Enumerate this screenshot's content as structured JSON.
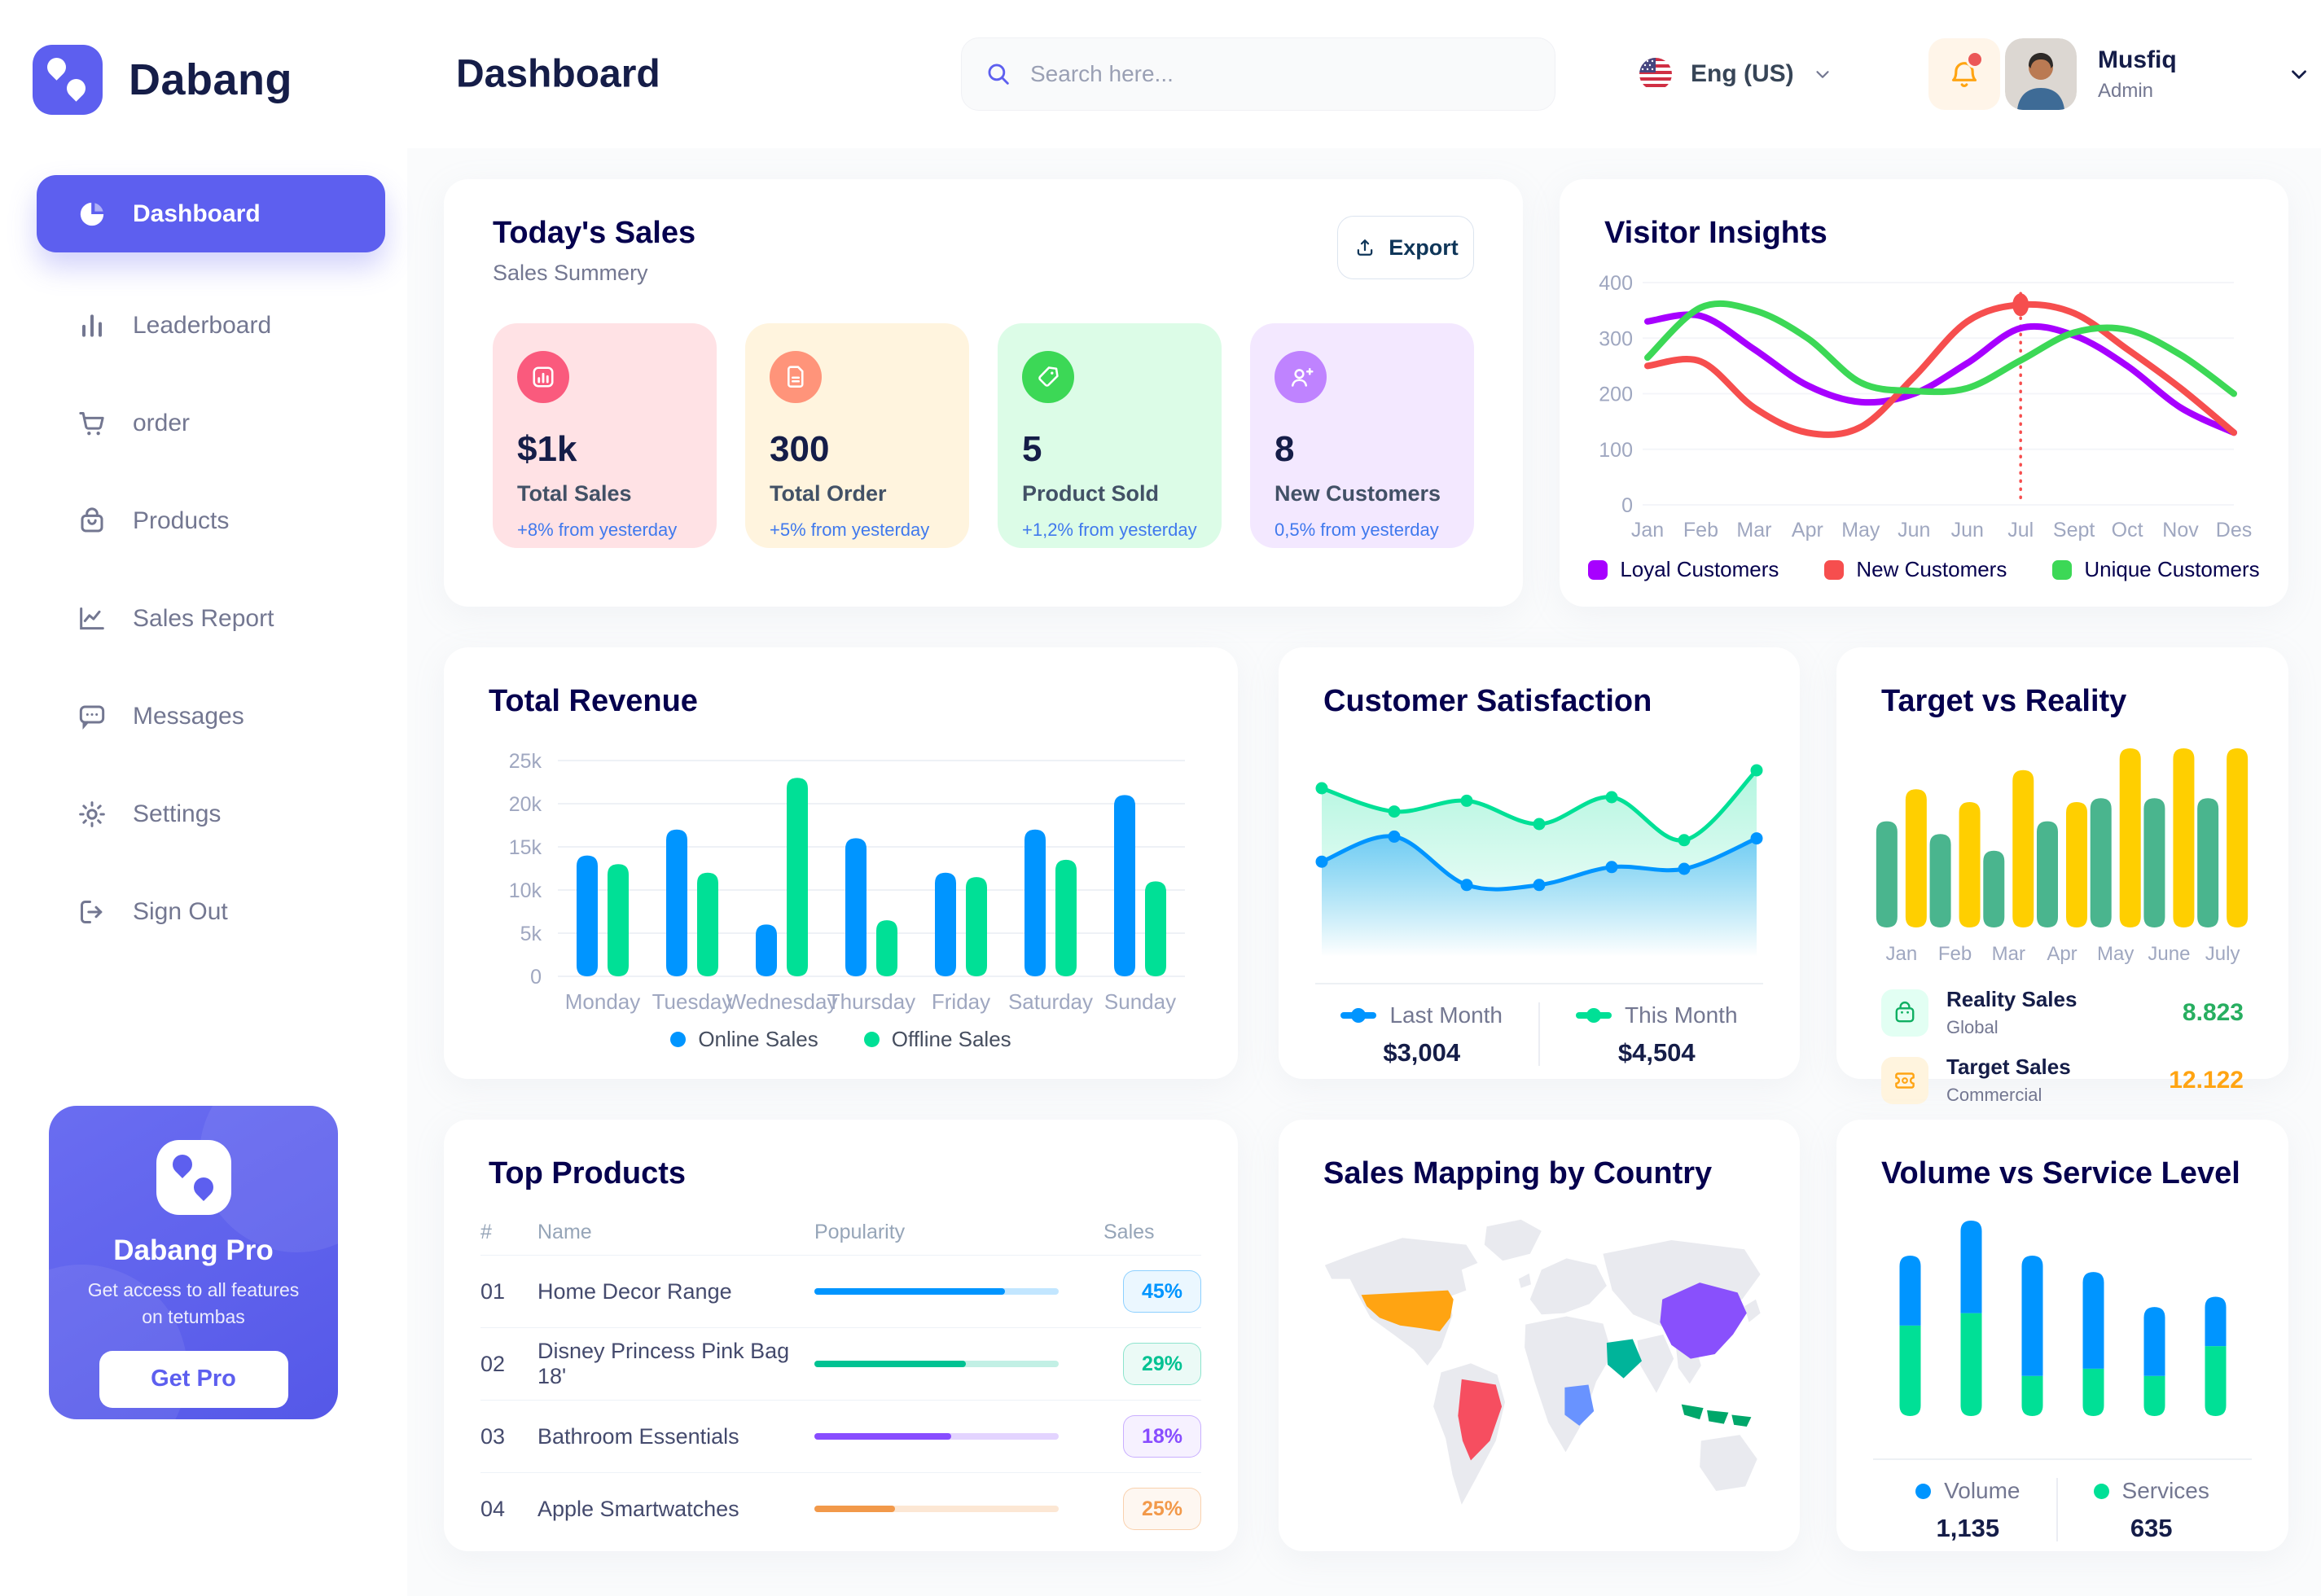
{
  "app": {
    "brand": "Dabang"
  },
  "header": {
    "title": "Dashboard",
    "search_placeholder": "Search here...",
    "language": "Eng (US)",
    "user_name": "Musfiq",
    "user_role": "Admin",
    "has_notification": true
  },
  "sidebar": {
    "items": [
      {
        "label": "Dashboard",
        "icon": "pie",
        "active": true
      },
      {
        "label": "Leaderboard",
        "icon": "bars",
        "active": false
      },
      {
        "label": "order",
        "icon": "cart",
        "active": false
      },
      {
        "label": "Products",
        "icon": "bag",
        "active": false
      },
      {
        "label": "Sales Report",
        "icon": "line",
        "active": false
      },
      {
        "label": "Messages",
        "icon": "message",
        "active": false
      },
      {
        "label": "Settings",
        "icon": "gear",
        "active": false
      },
      {
        "label": "Sign Out",
        "icon": "signout",
        "active": false
      }
    ],
    "pro_card": {
      "title": "Dabang Pro",
      "description": "Get access to all features on tetumbas",
      "button": "Get Pro"
    }
  },
  "today_sales": {
    "title": "Today's Sales",
    "subtitle": "Sales Summery",
    "export_label": "Export",
    "cards": [
      {
        "value": "$1k",
        "label": "Total Sales",
        "delta": "+8% from yesterday",
        "bg": "#FFE2E5",
        "accent": "#FA5A7D",
        "icon": "chart"
      },
      {
        "value": "300",
        "label": "Total Order",
        "delta": "+5% from yesterday",
        "bg": "#FFF4DE",
        "accent": "#FF947A",
        "icon": "file"
      },
      {
        "value": "5",
        "label": "Product Sold",
        "delta": "+1,2% from yesterday",
        "bg": "#DCFCE7",
        "accent": "#3CD856",
        "icon": "tag"
      },
      {
        "value": "8",
        "label": "New Customers",
        "delta": "0,5% from yesterday",
        "bg": "#F3E8FF",
        "accent": "#BF83FF",
        "icon": "userplus"
      }
    ]
  },
  "top_products": {
    "title": "Top Products",
    "columns": [
      "#",
      "Name",
      "Popularity",
      "Sales"
    ],
    "rows": [
      {
        "rank": "01",
        "name": "Home Decor Range",
        "popularity": 78,
        "sales": "45%",
        "color": "#0095FF"
      },
      {
        "rank": "02",
        "name": "Disney Princess Pink Bag 18'",
        "popularity": 62,
        "sales": "29%",
        "color": "#00C292"
      },
      {
        "rank": "03",
        "name": "Bathroom Essentials",
        "popularity": 56,
        "sales": "18%",
        "color": "#884DFF"
      },
      {
        "rank": "04",
        "name": "Apple Smartwatches",
        "popularity": 33,
        "sales": "25%",
        "color": "#F2994A"
      }
    ]
  },
  "sales_mapping": {
    "title": "Sales Mapping by Country",
    "land_color": "#E9EAEF",
    "countries": [
      {
        "id": "usa",
        "name": "United States",
        "color": "#FFA412"
      },
      {
        "id": "brazil",
        "name": "Brazil",
        "color": "#F64E60"
      },
      {
        "id": "china",
        "name": "China",
        "color": "#8950FC"
      },
      {
        "id": "saudi",
        "name": "Saudi Arabia",
        "color": "#00B49A"
      },
      {
        "id": "congo",
        "name": "DR Congo",
        "color": "#6993FF"
      },
      {
        "id": "indonesia",
        "name": "Indonesia",
        "color": "#00A76A"
      }
    ]
  },
  "chart_data": [
    {
      "id": "visitor_insights",
      "type": "line",
      "title": "Visitor Insights",
      "x": [
        "Jan",
        "Feb",
        "Mar",
        "Apr",
        "May",
        "Jun",
        "Jun",
        "Jul",
        "Sept",
        "Oct",
        "Nov",
        "Des"
      ],
      "y_ticks": [
        0,
        100,
        200,
        300,
        400
      ],
      "ylim": [
        0,
        400
      ],
      "grid": true,
      "legend_position": "bottom",
      "series": [
        {
          "name": "Loyal Customers",
          "color": "#A700FF",
          "values": [
            330,
            340,
            280,
            215,
            185,
            200,
            255,
            318,
            305,
            250,
            175,
            130
          ]
        },
        {
          "name": "New Customers",
          "color": "#F64E4E",
          "values": [
            250,
            258,
            175,
            130,
            140,
            230,
            330,
            360,
            345,
            280,
            210,
            130
          ]
        },
        {
          "name": "Unique Customers",
          "color": "#3CD856",
          "values": [
            265,
            355,
            350,
            300,
            220,
            205,
            210,
            260,
            310,
            315,
            270,
            200
          ]
        }
      ],
      "annotation": {
        "x_index": 7,
        "series": "New Customers",
        "value": 360
      }
    },
    {
      "id": "total_revenue",
      "type": "bar",
      "title": "Total Revenue",
      "categories": [
        "Monday",
        "Tuesday",
        "Wednesday",
        "Thursday",
        "Friday",
        "Saturday",
        "Sunday"
      ],
      "y_ticks": [
        0,
        5000,
        10000,
        15000,
        20000,
        25000
      ],
      "y_tick_labels": [
        "0",
        "5k",
        "10k",
        "15k",
        "20k",
        "25k"
      ],
      "ylim": [
        0,
        25000
      ],
      "grid": true,
      "legend_position": "bottom",
      "series": [
        {
          "name": "Online Sales",
          "color": "#0095FF",
          "values": [
            14000,
            17000,
            6000,
            16000,
            12000,
            17000,
            21000
          ]
        },
        {
          "name": "Offline Sales",
          "color": "#00E096",
          "values": [
            13000,
            12000,
            23000,
            6500,
            11500,
            13500,
            11000
          ]
        }
      ]
    },
    {
      "id": "customer_satisfaction",
      "type": "area",
      "title": "Customer Satisfaction",
      "ylim": [
        0,
        100
      ],
      "grid": false,
      "legend_position": "bottom",
      "series": [
        {
          "name": "Last Month",
          "color": "#0095FF",
          "total": "$3,004",
          "values": [
            44,
            58,
            31,
            31,
            41,
            40,
            57
          ]
        },
        {
          "name": "This Month",
          "color": "#00E096",
          "total": "$4,504",
          "values": [
            85,
            72,
            78,
            65,
            80,
            56,
            95
          ]
        }
      ]
    },
    {
      "id": "target_vs_reality",
      "type": "bar",
      "title": "Target vs Reality",
      "categories": [
        "Jan",
        "Feb",
        "Mar",
        "Apr",
        "May",
        "June",
        "July"
      ],
      "ylim": [
        0,
        14
      ],
      "grid": false,
      "legend_position": "bottom",
      "series": [
        {
          "name": "Reality Sales",
          "subtitle": "Global",
          "color": "#4AB58E",
          "value_label": "8.823",
          "value_color": "#27AE60",
          "icon": "bag",
          "icon_bg": "#E2FFF3",
          "values": [
            8.3,
            7.3,
            6.0,
            8.3,
            10.1,
            10.1,
            10.1
          ]
        },
        {
          "name": "Target Sales",
          "subtitle": "Commercial",
          "color": "#FFCF00",
          "value_label": "12.122",
          "value_color": "#FFA412",
          "icon": "ticket",
          "icon_bg": "#FFF4DE",
          "values": [
            10.8,
            9.8,
            12.3,
            9.8,
            14,
            14,
            14
          ]
        }
      ]
    },
    {
      "id": "volume_service",
      "type": "stacked-bar",
      "title": "Volume vs Service Level",
      "ylim": [
        0,
        950
      ],
      "grid": false,
      "legend_position": "bottom",
      "series": [
        {
          "name": "Volume",
          "color": "#0095FF",
          "total": "1,135",
          "values": [
            340,
            450,
            585,
            470,
            335,
            240
          ]
        },
        {
          "name": "Services",
          "color": "#00E096",
          "total": "635",
          "values": [
            440,
            500,
            195,
            230,
            195,
            340
          ]
        }
      ]
    }
  ]
}
